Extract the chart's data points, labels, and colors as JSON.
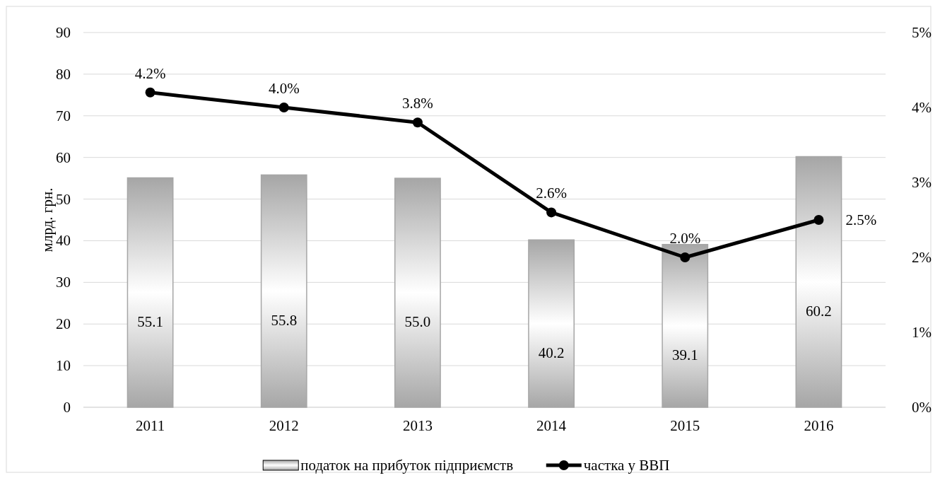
{
  "chart_data": {
    "type": "bar",
    "categories": [
      "2011",
      "2012",
      "2013",
      "2014",
      "2015",
      "2016"
    ],
    "ylabel": "млрд. грн.",
    "ylim": [
      0,
      90
    ],
    "yticks": [
      0,
      10,
      20,
      30,
      40,
      50,
      60,
      70,
      80,
      90
    ],
    "y2lim": [
      0,
      5
    ],
    "y2ticks": [
      {
        "value": 0,
        "label": "0%"
      },
      {
        "value": 1,
        "label": "1%"
      },
      {
        "value": 2,
        "label": "2%"
      },
      {
        "value": 3,
        "label": "3%"
      },
      {
        "value": 4,
        "label": "4%"
      },
      {
        "value": 5,
        "label": "5%"
      }
    ],
    "series": [
      {
        "name": "податок на прибуток підприємств",
        "color": "#a6a6a6",
        "values": [
          55.1,
          55.8,
          55.0,
          40.2,
          39.1,
          60.2
        ],
        "value_labels": [
          "55.1",
          "55.8",
          "55.0",
          "40.2",
          "39.1",
          "60.2"
        ]
      },
      {
        "name": "частка у ВВП",
        "type": "line",
        "axis": "y2",
        "color": "#000000",
        "marker": "circle",
        "values": [
          4.2,
          4.0,
          3.8,
          2.6,
          2.0,
          2.5
        ],
        "value_labels": [
          "4.2%",
          "4.0%",
          "3.8%",
          "2.6%",
          "2.0%",
          "2.5%"
        ]
      }
    ],
    "grid": "y",
    "legend": "bottom"
  }
}
